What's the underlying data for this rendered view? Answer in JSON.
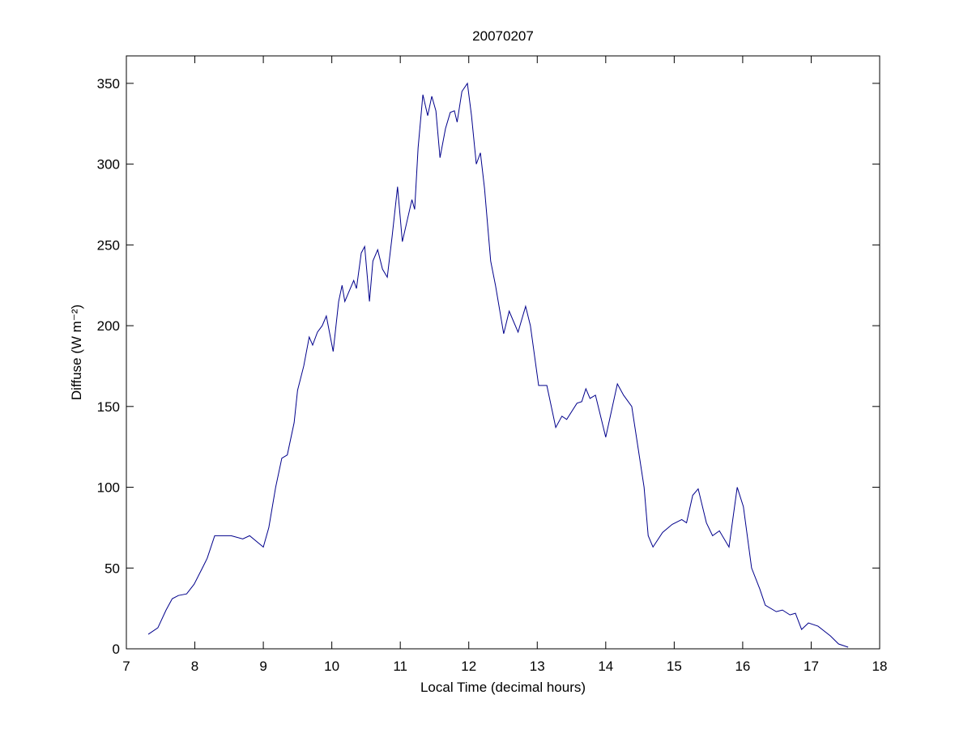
{
  "chart_data": {
    "type": "line",
    "title": "20070207",
    "xlabel": "Local Time (decimal hours)",
    "ylabel": "Diffuse (W m⁻²)",
    "x": [
      7.32,
      7.46,
      7.58,
      7.67,
      7.76,
      7.88,
      7.99,
      8.11,
      8.18,
      8.29,
      8.53,
      8.7,
      8.8,
      9.0,
      9.08,
      9.18,
      9.27,
      9.35,
      9.45,
      9.5,
      9.59,
      9.67,
      9.72,
      9.79,
      9.86,
      9.92,
      10.02,
      10.1,
      10.15,
      10.19,
      10.26,
      10.32,
      10.36,
      10.43,
      10.48,
      10.55,
      10.6,
      10.67,
      10.74,
      10.81,
      10.88,
      10.96,
      11.03,
      11.1,
      11.17,
      11.21,
      11.26,
      11.33,
      11.4,
      11.46,
      11.52,
      11.58,
      11.66,
      11.73,
      11.79,
      11.83,
      11.9,
      11.98,
      12.04,
      12.11,
      12.17,
      12.23,
      12.32,
      12.39,
      12.51,
      12.59,
      12.72,
      12.83,
      12.9,
      13.02,
      13.14,
      13.27,
      13.36,
      13.43,
      13.58,
      13.65,
      13.71,
      13.77,
      13.85,
      14.0,
      14.17,
      14.26,
      14.38,
      14.56,
      14.62,
      14.69,
      14.83,
      14.97,
      15.11,
      15.18,
      15.27,
      15.35,
      15.47,
      15.56,
      15.66,
      15.8,
      15.92,
      16.01,
      16.13,
      16.25,
      16.33,
      16.49,
      16.58,
      16.69,
      16.77,
      16.86,
      16.96,
      17.1,
      17.28,
      17.4,
      17.54
    ],
    "series": [
      {
        "color": "#00008b",
        "values": [
          9,
          13,
          24,
          31,
          33,
          34,
          40,
          50,
          56,
          70,
          70,
          68,
          70,
          63,
          75,
          100,
          118,
          120,
          140,
          160,
          175,
          193,
          188,
          196,
          200,
          206,
          184,
          215,
          225,
          215,
          222,
          228,
          223,
          245,
          249,
          215,
          240,
          247,
          235,
          230,
          255,
          286,
          252,
          265,
          278,
          272,
          310,
          343,
          330,
          342,
          333,
          304,
          322,
          332,
          333,
          326,
          345,
          350,
          330,
          300,
          307,
          285,
          240,
          225,
          195,
          209,
          196,
          212,
          200,
          163,
          163,
          137,
          144,
          142,
          152,
          153,
          161,
          155,
          157,
          131,
          164,
          157,
          150,
          100,
          70,
          63,
          72,
          77,
          80,
          78,
          95,
          99,
          78,
          70,
          73,
          63,
          100,
          88,
          50,
          37,
          27,
          23,
          24,
          21,
          22,
          12,
          16,
          14,
          8,
          3,
          1
        ]
      }
    ],
    "xlim": [
      7,
      18
    ],
    "xticks": [
      7,
      8,
      9,
      10,
      11,
      12,
      13,
      14,
      15,
      16,
      17,
      18
    ],
    "ylim": [
      0,
      367
    ],
    "yticks": [
      0,
      50,
      100,
      150,
      200,
      250,
      300,
      350
    ]
  }
}
